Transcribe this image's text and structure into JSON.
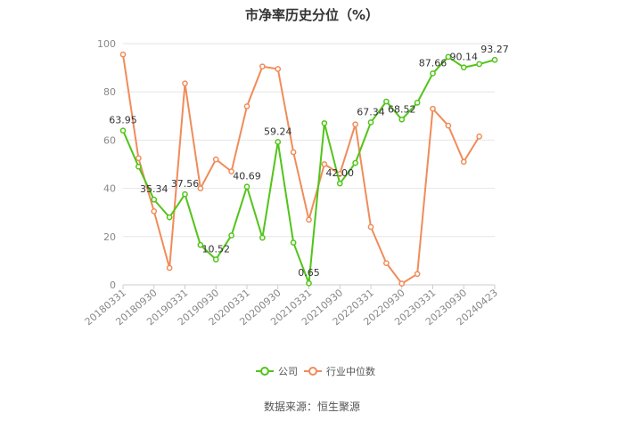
{
  "chart_data": {
    "type": "line",
    "title": "市净率历史分位（%）",
    "ylim": [
      0,
      100
    ],
    "yticks": [
      0,
      20,
      40,
      60,
      80,
      100
    ],
    "grid": true,
    "legend_position": "bottom",
    "categories": [
      "20180331",
      "20180630",
      "20180930",
      "20181231",
      "20190331",
      "20190630",
      "20190930",
      "20191231",
      "20200331",
      "20200630",
      "20200930",
      "20201231",
      "20210331",
      "20210630",
      "20210930",
      "20211231",
      "20220331",
      "20220630",
      "20220930",
      "20221231",
      "20230331",
      "20230630",
      "20230930",
      "20231231",
      "20240423"
    ],
    "visible_tick_indices": [
      0,
      2,
      4,
      6,
      8,
      10,
      12,
      14,
      16,
      18,
      20,
      22,
      24
    ],
    "series": [
      {
        "name": "公司",
        "color": "#52c41a",
        "values": [
          63.95,
          49,
          35.34,
          28,
          37.56,
          16.5,
          10.52,
          20.5,
          40.69,
          19.5,
          59.24,
          17.5,
          0.65,
          67,
          42.0,
          50.5,
          67.34,
          76,
          68.52,
          75.5,
          87.66,
          94.5,
          90.14,
          91.5,
          93.27
        ],
        "point_labels": {
          "0": "63.95",
          "2": "35.34",
          "4": "37.56",
          "6": "10.52",
          "8": "40.69",
          "10": "59.24",
          "12": "0.65",
          "14": "42.00",
          "16": "67.34",
          "18": "68.52",
          "20": "87.66",
          "22": "90.14",
          "24": "93.27"
        }
      },
      {
        "name": "行业中位数",
        "color": "#f08c5a",
        "values": [
          95.5,
          52.5,
          30.5,
          7,
          83.5,
          40,
          52,
          47,
          74,
          90.5,
          89.5,
          55,
          27,
          50,
          46,
          66.5,
          24,
          9,
          0.5,
          4.5,
          73,
          66,
          51,
          61.5,
          null
        ]
      }
    ]
  },
  "source_text": "数据来源：恒生聚源"
}
